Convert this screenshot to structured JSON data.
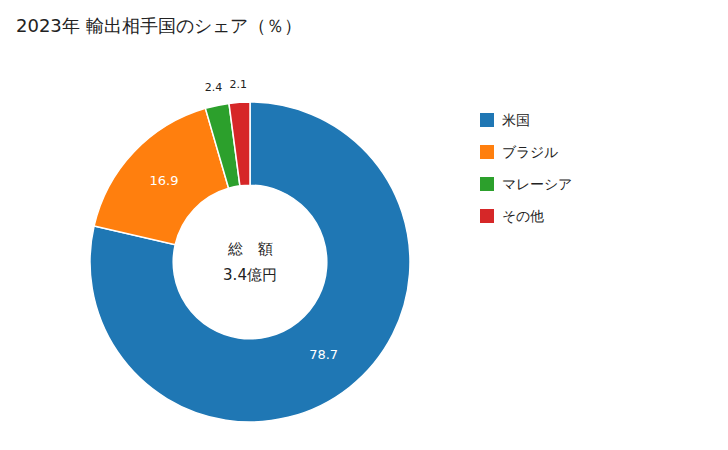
{
  "chart_data": {
    "type": "donut",
    "title": "2023年 輸出相手国のシェア（％）",
    "categories": [
      "米国",
      "ブラジル",
      "マレーシア",
      "その他"
    ],
    "values": [
      78.7,
      16.9,
      2.4,
      2.1
    ],
    "annotations": [
      "総　額",
      "3.4億円"
    ],
    "data_labels": true,
    "legend": "right"
  }
}
